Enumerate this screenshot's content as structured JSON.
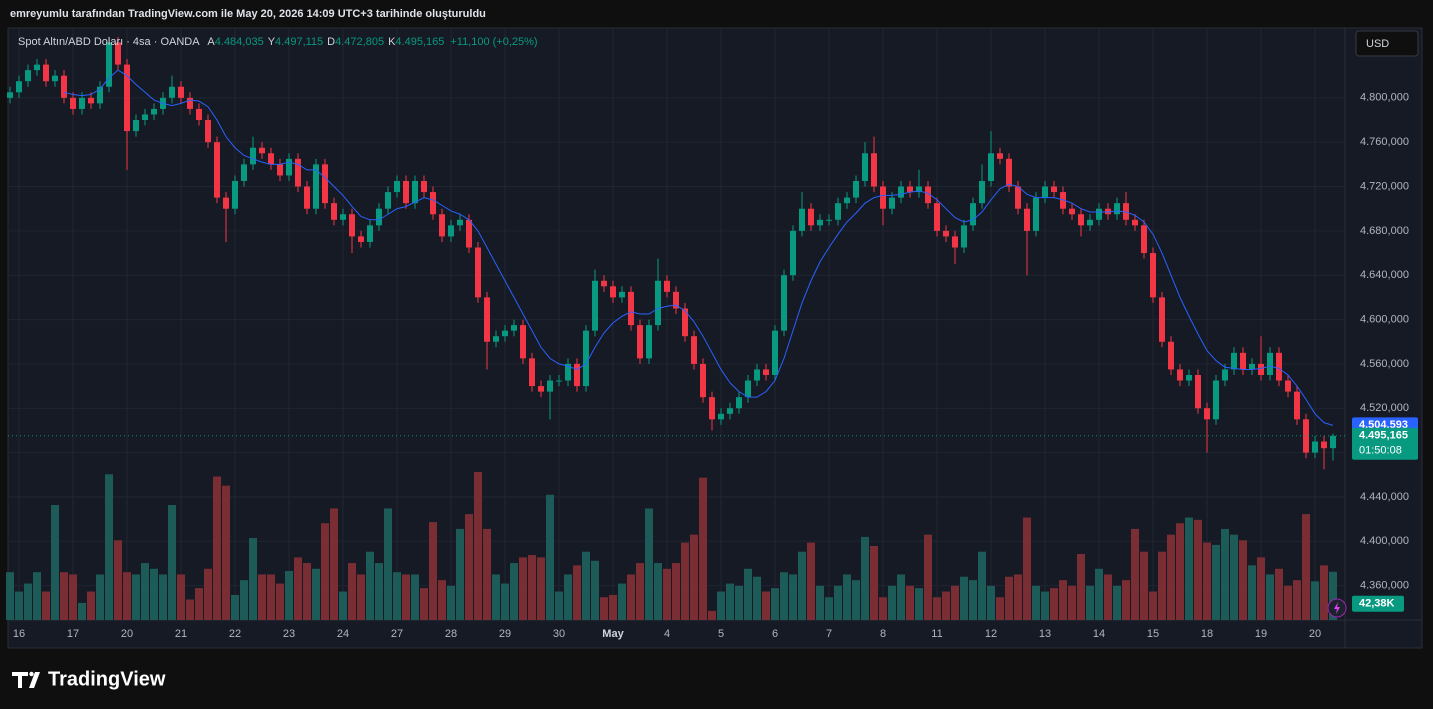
{
  "credit": "emreyumlu tarafından TradingView.com ile May 20, 2026 14:09 UTC+3 tarihinde oluşturuldu",
  "brand": "TradingView",
  "currency": "USD",
  "chart_data": {
    "type": "candlestick",
    "symbol": "Spot Altın/ABD Doları · 4sa · OANDA",
    "ohlc_legend": [
      {
        "key": "A",
        "value": "4.484,035"
      },
      {
        "key": "Y",
        "value": "4.497,115"
      },
      {
        "key": "D",
        "value": "4.472,805"
      },
      {
        "key": "K",
        "value": "4.495,165"
      }
    ],
    "change": "+11,100 (+0,25%)",
    "up_color": "#089981",
    "down_color": "#f23645",
    "volume_up_color": "#1d5b58",
    "volume_down_color": "#7a2e33",
    "ma_color": "#2962ff",
    "grid": true,
    "ylim": [
      4.329,
      4.863
    ],
    "yticks": [
      {
        "value": 4.36,
        "label": "4.360,000"
      },
      {
        "value": 4.4,
        "label": "4.400,000"
      },
      {
        "value": 4.44,
        "label": "4.440,000"
      },
      {
        "value": 4.48,
        "label": "4.480,000"
      },
      {
        "value": 4.52,
        "label": "4.520,000"
      },
      {
        "value": 4.56,
        "label": "4.560,000"
      },
      {
        "value": 4.6,
        "label": "4.600,000"
      },
      {
        "value": 4.64,
        "label": "4.640,000"
      },
      {
        "value": 4.68,
        "label": "4.680,000"
      },
      {
        "value": 4.72,
        "label": "4.720,000"
      },
      {
        "value": 4.76,
        "label": "4.760,000"
      },
      {
        "value": 4.8,
        "label": "4.800,000"
      }
    ],
    "price_label": "4.495,165",
    "countdown": "01:50:08",
    "ma_label": "4.504,593",
    "volume_label": "42,38K",
    "categories": [
      null,
      "16",
      null,
      null,
      null,
      null,
      null,
      "17",
      null,
      null,
      null,
      null,
      null,
      "20",
      null,
      null,
      null,
      null,
      null,
      "21",
      null,
      null,
      null,
      null,
      null,
      "22",
      null,
      null,
      null,
      null,
      null,
      "23",
      null,
      null,
      null,
      null,
      null,
      "24",
      null,
      null,
      null,
      null,
      null,
      "27",
      null,
      null,
      null,
      null,
      null,
      "28",
      null,
      null,
      null,
      null,
      null,
      "29",
      null,
      null,
      null,
      null,
      null,
      "30",
      null,
      null,
      null,
      null,
      null,
      "May",
      null,
      null,
      null,
      null,
      null,
      "4",
      null,
      null,
      null,
      null,
      null,
      "5",
      null,
      null,
      null,
      null,
      null,
      "6",
      null,
      null,
      null,
      null,
      null,
      "7",
      null,
      null,
      null,
      null,
      null,
      "8",
      null,
      null,
      null,
      null,
      null,
      "11",
      null,
      null,
      null,
      null,
      null,
      "12",
      null,
      null,
      null,
      null,
      null,
      "13",
      null,
      null,
      null,
      null,
      null,
      "14",
      null,
      null,
      null,
      null,
      null,
      "15",
      null,
      null,
      null,
      null,
      null,
      "18",
      null,
      null,
      null,
      null,
      null,
      "19",
      null,
      null,
      null,
      null,
      null,
      "20",
      null,
      null
    ],
    "candles": [
      [
        4.8,
        4.81,
        4.795,
        4.805
      ],
      [
        4.805,
        4.82,
        4.8,
        4.815
      ],
      [
        4.815,
        4.83,
        4.81,
        4.825
      ],
      [
        4.825,
        4.835,
        4.82,
        4.83
      ],
      [
        4.83,
        4.835,
        4.81,
        4.815
      ],
      [
        4.815,
        4.825,
        4.81,
        4.82
      ],
      [
        4.82,
        4.825,
        4.795,
        4.8
      ],
      [
        4.8,
        4.805,
        4.785,
        4.79
      ],
      [
        4.79,
        4.805,
        4.785,
        4.8
      ],
      [
        4.8,
        4.805,
        4.79,
        4.795
      ],
      [
        4.795,
        4.815,
        4.79,
        4.81
      ],
      [
        4.81,
        4.855,
        4.805,
        4.85
      ],
      [
        4.85,
        4.855,
        4.825,
        4.83
      ],
      [
        4.83,
        4.835,
        4.735,
        4.77
      ],
      [
        4.77,
        4.785,
        4.765,
        4.78
      ],
      [
        4.78,
        4.79,
        4.775,
        4.785
      ],
      [
        4.785,
        4.795,
        4.78,
        4.79
      ],
      [
        4.79,
        4.805,
        4.785,
        4.8
      ],
      [
        4.8,
        4.82,
        4.795,
        4.81
      ],
      [
        4.81,
        4.815,
        4.795,
        4.8
      ],
      [
        4.8,
        4.805,
        4.785,
        4.79
      ],
      [
        4.79,
        4.795,
        4.775,
        4.78
      ],
      [
        4.78,
        4.785,
        4.755,
        4.76
      ],
      [
        4.76,
        4.765,
        4.705,
        4.71
      ],
      [
        4.71,
        4.715,
        4.67,
        4.7
      ],
      [
        4.7,
        4.73,
        4.695,
        4.725
      ],
      [
        4.725,
        4.745,
        4.72,
        4.74
      ],
      [
        4.74,
        4.765,
        4.735,
        4.755
      ],
      [
        4.755,
        4.76,
        4.745,
        4.75
      ],
      [
        4.75,
        4.755,
        4.735,
        4.74
      ],
      [
        4.74,
        4.745,
        4.725,
        4.73
      ],
      [
        4.73,
        4.75,
        4.725,
        4.745
      ],
      [
        4.745,
        4.75,
        4.715,
        4.72
      ],
      [
        4.72,
        4.725,
        4.695,
        4.7
      ],
      [
        4.7,
        4.745,
        4.695,
        4.74
      ],
      [
        4.74,
        4.745,
        4.7,
        4.705
      ],
      [
        4.705,
        4.71,
        4.685,
        4.69
      ],
      [
        4.69,
        4.7,
        4.685,
        4.695
      ],
      [
        4.695,
        4.7,
        4.66,
        4.675
      ],
      [
        4.675,
        4.68,
        4.665,
        4.67
      ],
      [
        4.67,
        4.69,
        4.665,
        4.685
      ],
      [
        4.685,
        4.705,
        4.68,
        4.7
      ],
      [
        4.7,
        4.72,
        4.695,
        4.715
      ],
      [
        4.715,
        4.73,
        4.71,
        4.725
      ],
      [
        4.725,
        4.73,
        4.7,
        4.705
      ],
      [
        4.705,
        4.73,
        4.7,
        4.725
      ],
      [
        4.725,
        4.73,
        4.71,
        4.715
      ],
      [
        4.715,
        4.72,
        4.69,
        4.695
      ],
      [
        4.695,
        4.7,
        4.67,
        4.675
      ],
      [
        4.675,
        4.69,
        4.67,
        4.685
      ],
      [
        4.685,
        4.695,
        4.68,
        4.69
      ],
      [
        4.69,
        4.695,
        4.66,
        4.665
      ],
      [
        4.665,
        4.67,
        4.615,
        4.62
      ],
      [
        4.62,
        4.625,
        4.555,
        4.58
      ],
      [
        4.58,
        4.59,
        4.575,
        4.585
      ],
      [
        4.585,
        4.595,
        4.58,
        4.59
      ],
      [
        4.59,
        4.6,
        4.585,
        4.595
      ],
      [
        4.595,
        4.6,
        4.56,
        4.565
      ],
      [
        4.565,
        4.57,
        4.535,
        4.54
      ],
      [
        4.54,
        4.545,
        4.53,
        4.535
      ],
      [
        4.535,
        4.55,
        4.51,
        4.545
      ],
      [
        4.545,
        4.55,
        4.54,
        4.545
      ],
      [
        4.545,
        4.565,
        4.54,
        4.56
      ],
      [
        4.56,
        4.565,
        4.535,
        4.54
      ],
      [
        4.54,
        4.595,
        4.535,
        4.59
      ],
      [
        4.59,
        4.645,
        4.585,
        4.635
      ],
      [
        4.635,
        4.64,
        4.625,
        4.63
      ],
      [
        4.63,
        4.635,
        4.615,
        4.62
      ],
      [
        4.62,
        4.63,
        4.615,
        4.625
      ],
      [
        4.625,
        4.63,
        4.59,
        4.595
      ],
      [
        4.595,
        4.6,
        4.56,
        4.565
      ],
      [
        4.565,
        4.6,
        4.56,
        4.595
      ],
      [
        4.595,
        4.655,
        4.59,
        4.635
      ],
      [
        4.635,
        4.64,
        4.62,
        4.625
      ],
      [
        4.625,
        4.63,
        4.605,
        4.61
      ],
      [
        4.61,
        4.615,
        4.58,
        4.585
      ],
      [
        4.585,
        4.59,
        4.555,
        4.56
      ],
      [
        4.56,
        4.565,
        4.525,
        4.53
      ],
      [
        4.53,
        4.535,
        4.5,
        4.51
      ],
      [
        4.51,
        4.52,
        4.505,
        4.515
      ],
      [
        4.515,
        4.525,
        4.51,
        4.52
      ],
      [
        4.52,
        4.535,
        4.515,
        4.53
      ],
      [
        4.53,
        4.55,
        4.525,
        4.545
      ],
      [
        4.545,
        4.56,
        4.54,
        4.555
      ],
      [
        4.555,
        4.56,
        4.545,
        4.55
      ],
      [
        4.55,
        4.595,
        4.545,
        4.59
      ],
      [
        4.59,
        4.645,
        4.585,
        4.64
      ],
      [
        4.64,
        4.685,
        4.635,
        4.68
      ],
      [
        4.68,
        4.715,
        4.675,
        4.7
      ],
      [
        4.7,
        4.705,
        4.68,
        4.685
      ],
      [
        4.685,
        4.695,
        4.68,
        4.69
      ],
      [
        4.69,
        4.695,
        4.685,
        4.69
      ],
      [
        4.69,
        4.71,
        4.685,
        4.705
      ],
      [
        4.705,
        4.715,
        4.7,
        4.71
      ],
      [
        4.71,
        4.73,
        4.705,
        4.725
      ],
      [
        4.725,
        4.76,
        4.72,
        4.75
      ],
      [
        4.75,
        4.765,
        4.715,
        4.72
      ],
      [
        4.72,
        4.725,
        4.685,
        4.7
      ],
      [
        4.7,
        4.715,
        4.695,
        4.71
      ],
      [
        4.71,
        4.725,
        4.705,
        4.72
      ],
      [
        4.72,
        4.725,
        4.71,
        4.715
      ],
      [
        4.715,
        4.735,
        4.71,
        4.72
      ],
      [
        4.72,
        4.725,
        4.7,
        4.705
      ],
      [
        4.705,
        4.71,
        4.675,
        4.68
      ],
      [
        4.68,
        4.685,
        4.67,
        4.675
      ],
      [
        4.675,
        4.68,
        4.65,
        4.665
      ],
      [
        4.665,
        4.69,
        4.66,
        4.685
      ],
      [
        4.685,
        4.71,
        4.68,
        4.705
      ],
      [
        4.705,
        4.74,
        4.7,
        4.725
      ],
      [
        4.725,
        4.77,
        4.72,
        4.75
      ],
      [
        4.75,
        4.755,
        4.74,
        4.745
      ],
      [
        4.745,
        4.75,
        4.715,
        4.72
      ],
      [
        4.72,
        4.725,
        4.695,
        4.7
      ],
      [
        4.7,
        4.705,
        4.64,
        4.68
      ],
      [
        4.68,
        4.715,
        4.675,
        4.71
      ],
      [
        4.71,
        4.725,
        4.705,
        4.72
      ],
      [
        4.72,
        4.725,
        4.71,
        4.715
      ],
      [
        4.715,
        4.72,
        4.695,
        4.7
      ],
      [
        4.7,
        4.705,
        4.69,
        4.695
      ],
      [
        4.695,
        4.7,
        4.675,
        4.685
      ],
      [
        4.685,
        4.695,
        4.68,
        4.69
      ],
      [
        4.69,
        4.705,
        4.685,
        4.7
      ],
      [
        4.7,
        4.705,
        4.69,
        4.695
      ],
      [
        4.695,
        4.71,
        4.69,
        4.705
      ],
      [
        4.705,
        4.715,
        4.685,
        4.69
      ],
      [
        4.69,
        4.695,
        4.68,
        4.685
      ],
      [
        4.685,
        4.69,
        4.655,
        4.66
      ],
      [
        4.66,
        4.665,
        4.615,
        4.62
      ],
      [
        4.62,
        4.625,
        4.575,
        4.58
      ],
      [
        4.58,
        4.585,
        4.55,
        4.555
      ],
      [
        4.555,
        4.56,
        4.54,
        4.545
      ],
      [
        4.545,
        4.555,
        4.54,
        4.55
      ],
      [
        4.55,
        4.555,
        4.515,
        4.52
      ],
      [
        4.52,
        4.525,
        4.48,
        4.51
      ],
      [
        4.51,
        4.55,
        4.505,
        4.545
      ],
      [
        4.545,
        4.56,
        4.54,
        4.555
      ],
      [
        4.555,
        4.575,
        4.55,
        4.57
      ],
      [
        4.57,
        4.575,
        4.55,
        4.555
      ],
      [
        4.555,
        4.565,
        4.55,
        4.56
      ],
      [
        4.56,
        4.585,
        4.545,
        4.55
      ],
      [
        4.55,
        4.575,
        4.545,
        4.57
      ],
      [
        4.57,
        4.575,
        4.54,
        4.545
      ],
      [
        4.545,
        4.55,
        4.53,
        4.535
      ],
      [
        4.535,
        4.54,
        4.505,
        4.51
      ],
      [
        4.51,
        4.515,
        4.475,
        4.48
      ],
      [
        4.48,
        4.495,
        4.475,
        4.49
      ],
      [
        4.49,
        4.495,
        4.465,
        4.484
      ],
      [
        4.484035,
        4.497115,
        4.472805,
        4.495165
      ]
    ],
    "ma": [
      null,
      null,
      null,
      null,
      null,
      null,
      4.805,
      4.803,
      4.802,
      4.803,
      4.808,
      4.818,
      4.825,
      4.82,
      4.812,
      4.805,
      4.798,
      4.795,
      4.793,
      4.795,
      4.798,
      4.797,
      4.792,
      4.78,
      4.765,
      4.755,
      4.748,
      4.745,
      4.742,
      4.74,
      4.74,
      4.742,
      4.74,
      4.735,
      4.735,
      4.728,
      4.72,
      4.712,
      4.702,
      4.693,
      4.69,
      4.69,
      4.695,
      4.7,
      4.702,
      4.706,
      4.71,
      4.708,
      4.703,
      4.698,
      4.695,
      4.69,
      4.68,
      4.665,
      4.65,
      4.635,
      4.62,
      4.605,
      4.59,
      4.575,
      4.565,
      4.56,
      4.558,
      4.555,
      4.56,
      4.575,
      4.588,
      4.597,
      4.603,
      4.607,
      4.605,
      4.605,
      4.61,
      4.612,
      4.613,
      4.608,
      4.598,
      4.585,
      4.57,
      4.555,
      4.543,
      4.535,
      4.53,
      4.53,
      4.535,
      4.545,
      4.565,
      4.59,
      4.615,
      4.635,
      4.652,
      4.665,
      4.677,
      4.688,
      4.696,
      4.705,
      4.71,
      4.712,
      4.712,
      4.713,
      4.715,
      4.716,
      4.714,
      4.708,
      4.7,
      4.692,
      4.688,
      4.69,
      4.697,
      4.708,
      4.718,
      4.722,
      4.72,
      4.713,
      4.71,
      4.71,
      4.71,
      4.708,
      4.705,
      4.7,
      4.697,
      4.697,
      4.697,
      4.698,
      4.697,
      4.694,
      4.688,
      4.677,
      4.66,
      4.64,
      4.62,
      4.603,
      4.587,
      4.572,
      4.563,
      4.557,
      4.556,
      4.555,
      4.555,
      4.556,
      4.558,
      4.556,
      4.55,
      4.54,
      4.528,
      4.515,
      4.507,
      4.504593
    ],
    "volume": [
      42000,
      25000,
      32000,
      42000,
      25000,
      101000,
      42000,
      40000,
      15000,
      25000,
      40000,
      128000,
      70000,
      42000,
      40000,
      50000,
      45000,
      40000,
      101000,
      40000,
      18000,
      28000,
      45000,
      126000,
      118000,
      22000,
      35000,
      72000,
      40000,
      40000,
      32000,
      43000,
      55000,
      50000,
      45000,
      85000,
      98000,
      25000,
      50000,
      40000,
      60000,
      50000,
      98000,
      42000,
      40000,
      40000,
      28000,
      86000,
      35000,
      30000,
      80000,
      93000,
      130000,
      80000,
      40000,
      32000,
      50000,
      55000,
      57000,
      55000,
      110000,
      25000,
      40000,
      48000,
      60000,
      52000,
      20000,
      22000,
      32000,
      40000,
      50000,
      98000,
      50000,
      45000,
      50000,
      68000,
      75000,
      125000,
      8000,
      25000,
      32000,
      30000,
      45000,
      38000,
      25000,
      28000,
      42000,
      40000,
      60000,
      68000,
      30000,
      20000,
      30000,
      40000,
      35000,
      73000,
      65000,
      20000,
      30000,
      40000,
      30000,
      28000,
      75000,
      20000,
      25000,
      30000,
      38000,
      35000,
      60000,
      30000,
      20000,
      38000,
      40000,
      90000,
      30000,
      25000,
      28000,
      35000,
      30000,
      58000,
      30000,
      45000,
      40000,
      30000,
      35000,
      80000,
      60000,
      25000,
      60000,
      75000,
      85000,
      90000,
      88000,
      68000,
      66000,
      80000,
      75000,
      70000,
      48000,
      55000,
      40000,
      45000,
      30000,
      35000,
      93000,
      34000,
      48000,
      42380
    ]
  }
}
